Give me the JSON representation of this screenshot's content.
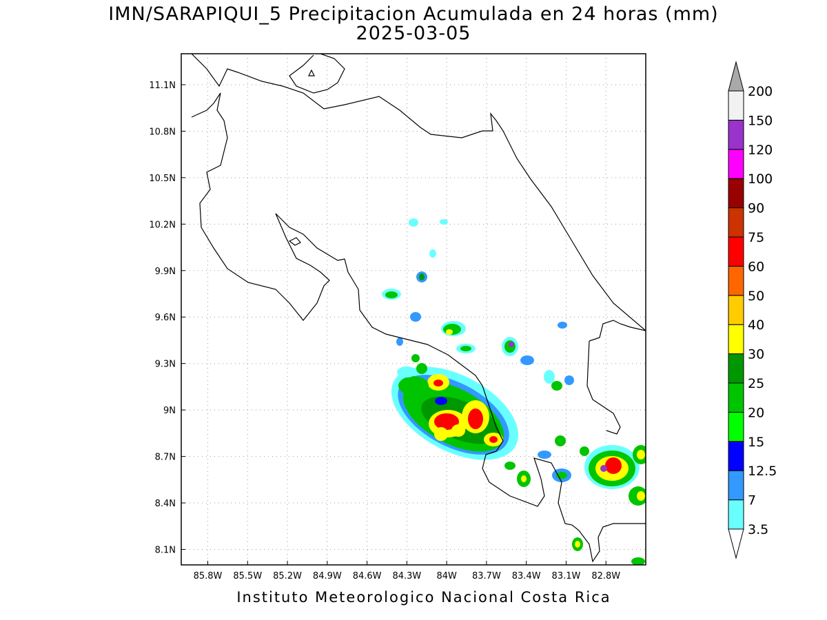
{
  "title_line1": "IMN/SARAPIQUI_5 Precipitacion Acumulada en 24 horas (mm)",
  "title_line2": "2025-03-05",
  "footer": "Instituto Meteorologico Nacional Costa Rica",
  "map": {
    "lon_range": [
      -86.0,
      -82.5
    ],
    "lat_range": [
      8.0,
      11.3
    ],
    "lon_ticks": [
      "85.8W",
      "85.5W",
      "85.2W",
      "84.9W",
      "84.6W",
      "84.3W",
      "84W",
      "83.7W",
      "83.4W",
      "83.1W",
      "82.8W"
    ],
    "lat_ticks": [
      "11.1N",
      "10.8N",
      "10.5N",
      "10.2N",
      "9.9N",
      "9.6N",
      "9.3N",
      "9N",
      "8.7N",
      "8.4N",
      "8.1N"
    ],
    "grid": "dotted"
  },
  "colorbar": {
    "labels": [
      "3.5",
      "7",
      "12.5",
      "15",
      "20",
      "25",
      "30",
      "40",
      "50",
      "60",
      "75",
      "90",
      "100",
      "120",
      "150",
      "200"
    ],
    "colors": [
      "#6affff",
      "#3299ff",
      "#0000ff",
      "#00ff00",
      "#00c400",
      "#009800",
      "#ffff00",
      "#ffcc00",
      "#ff6600",
      "#ff0000",
      "#cc3300",
      "#990000",
      "#ff00ff",
      "#9933cc",
      "#f2f2f2",
      "#a9a9a9"
    ]
  }
}
